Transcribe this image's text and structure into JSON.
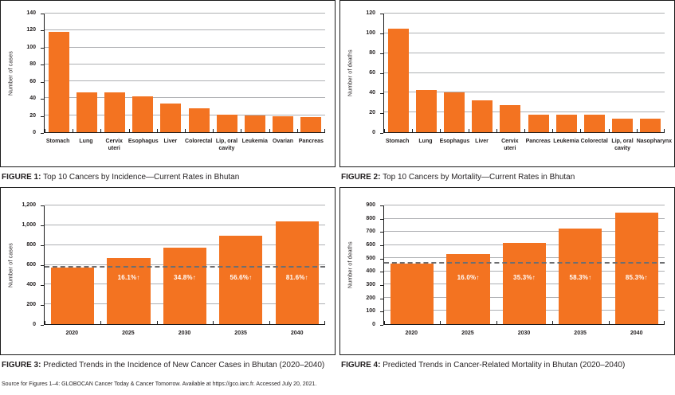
{
  "page": {
    "source_line": "Source for Figures 1–4: GLOBOCAN Cancer Today & Cancer Tomorrow. Available at https://gco.iarc.fr. Accessed July 20, 2021."
  },
  "colors": {
    "bar": "#f37321",
    "gridline": "#aeb0b3",
    "baseline_dash": "#6d6e71",
    "axis": "#1a1a1a",
    "bar_label_text": "#ffffff"
  },
  "figures": [
    {
      "label": "FIGURE 1:",
      "caption": "Top 10 Cancers by Incidence—Current Rates in Bhutan"
    },
    {
      "label": "FIGURE 2:",
      "caption": "Top 10 Cancers by Mortality—Current Rates in Bhutan"
    },
    {
      "label": "FIGURE 3:",
      "caption": "Predicted Trends in the Incidence of New Cancer Cases in Bhutan (2020–2040)"
    },
    {
      "label": "FIGURE 4:",
      "caption": "Predicted Trends in Cancer-Related Mortality in Bhutan (2020–2040)"
    }
  ],
  "chart_data": [
    {
      "type": "bar",
      "title": "FIGURE 1: Top 10 Cancers by Incidence—Current Rates in Bhutan",
      "xlabel": "",
      "ylabel": "Number of cases",
      "categories": [
        "Stomach",
        "Lung",
        "Cervix uteri",
        "Esophagus",
        "Liver",
        "Colorectal",
        "Lip, oral cavity",
        "Leukemia",
        "Ovarian",
        "Pancreas"
      ],
      "values": [
        118,
        47,
        47,
        42,
        34,
        28,
        21,
        20,
        19,
        18
      ],
      "ylim": [
        0,
        140
      ],
      "ytick_step": 20,
      "grid": true,
      "legend": "none"
    },
    {
      "type": "bar",
      "title": "FIGURE 2: Top 10 Cancers by Mortality—Current Rates in Bhutan",
      "xlabel": "",
      "ylabel": "Number of deaths",
      "categories": [
        "Stomach",
        "Lung",
        "Esophagus",
        "Liver",
        "Cervix uteri",
        "Pancreas",
        "Leukemia",
        "Colorectal",
        "Lip, oral cavity",
        "Nasopharynx"
      ],
      "values": [
        105,
        43,
        40,
        32,
        27,
        18,
        18,
        18,
        14,
        14
      ],
      "ylim": [
        0,
        120
      ],
      "ytick_step": 20,
      "grid": true,
      "legend": "none"
    },
    {
      "type": "bar",
      "title": "FIGURE 3: Predicted Trends in the Incidence of New Cancer Cases in Bhutan (2020–2040)",
      "xlabel": "",
      "ylabel": "Number of cases",
      "categories": [
        "2020",
        "2025",
        "2030",
        "2035",
        "2040"
      ],
      "values": [
        573,
        665,
        772,
        897,
        1041
      ],
      "bar_labels": [
        "",
        "16.1%↑",
        "34.8%↑",
        "56.6%↑",
        "81.6%↑"
      ],
      "baseline": 573,
      "ylim": [
        0,
        1200
      ],
      "ytick_step": 200,
      "grid": true,
      "legend": "none"
    },
    {
      "type": "bar",
      "title": "FIGURE 4: Predicted Trends in Cancer-Related Mortality in Bhutan (2020–2040)",
      "xlabel": "",
      "ylabel": "Number of deaths",
      "categories": [
        "2020",
        "2025",
        "2030",
        "2035",
        "2040"
      ],
      "values": [
        457,
        530,
        618,
        723,
        847
      ],
      "bar_labels": [
        "",
        "16.0%↑",
        "35.3%↑",
        "58.3%↑",
        "85.3%↑"
      ],
      "baseline": 457,
      "ylim": [
        0,
        900
      ],
      "ytick_step": 100,
      "grid": true,
      "legend": "none"
    }
  ]
}
